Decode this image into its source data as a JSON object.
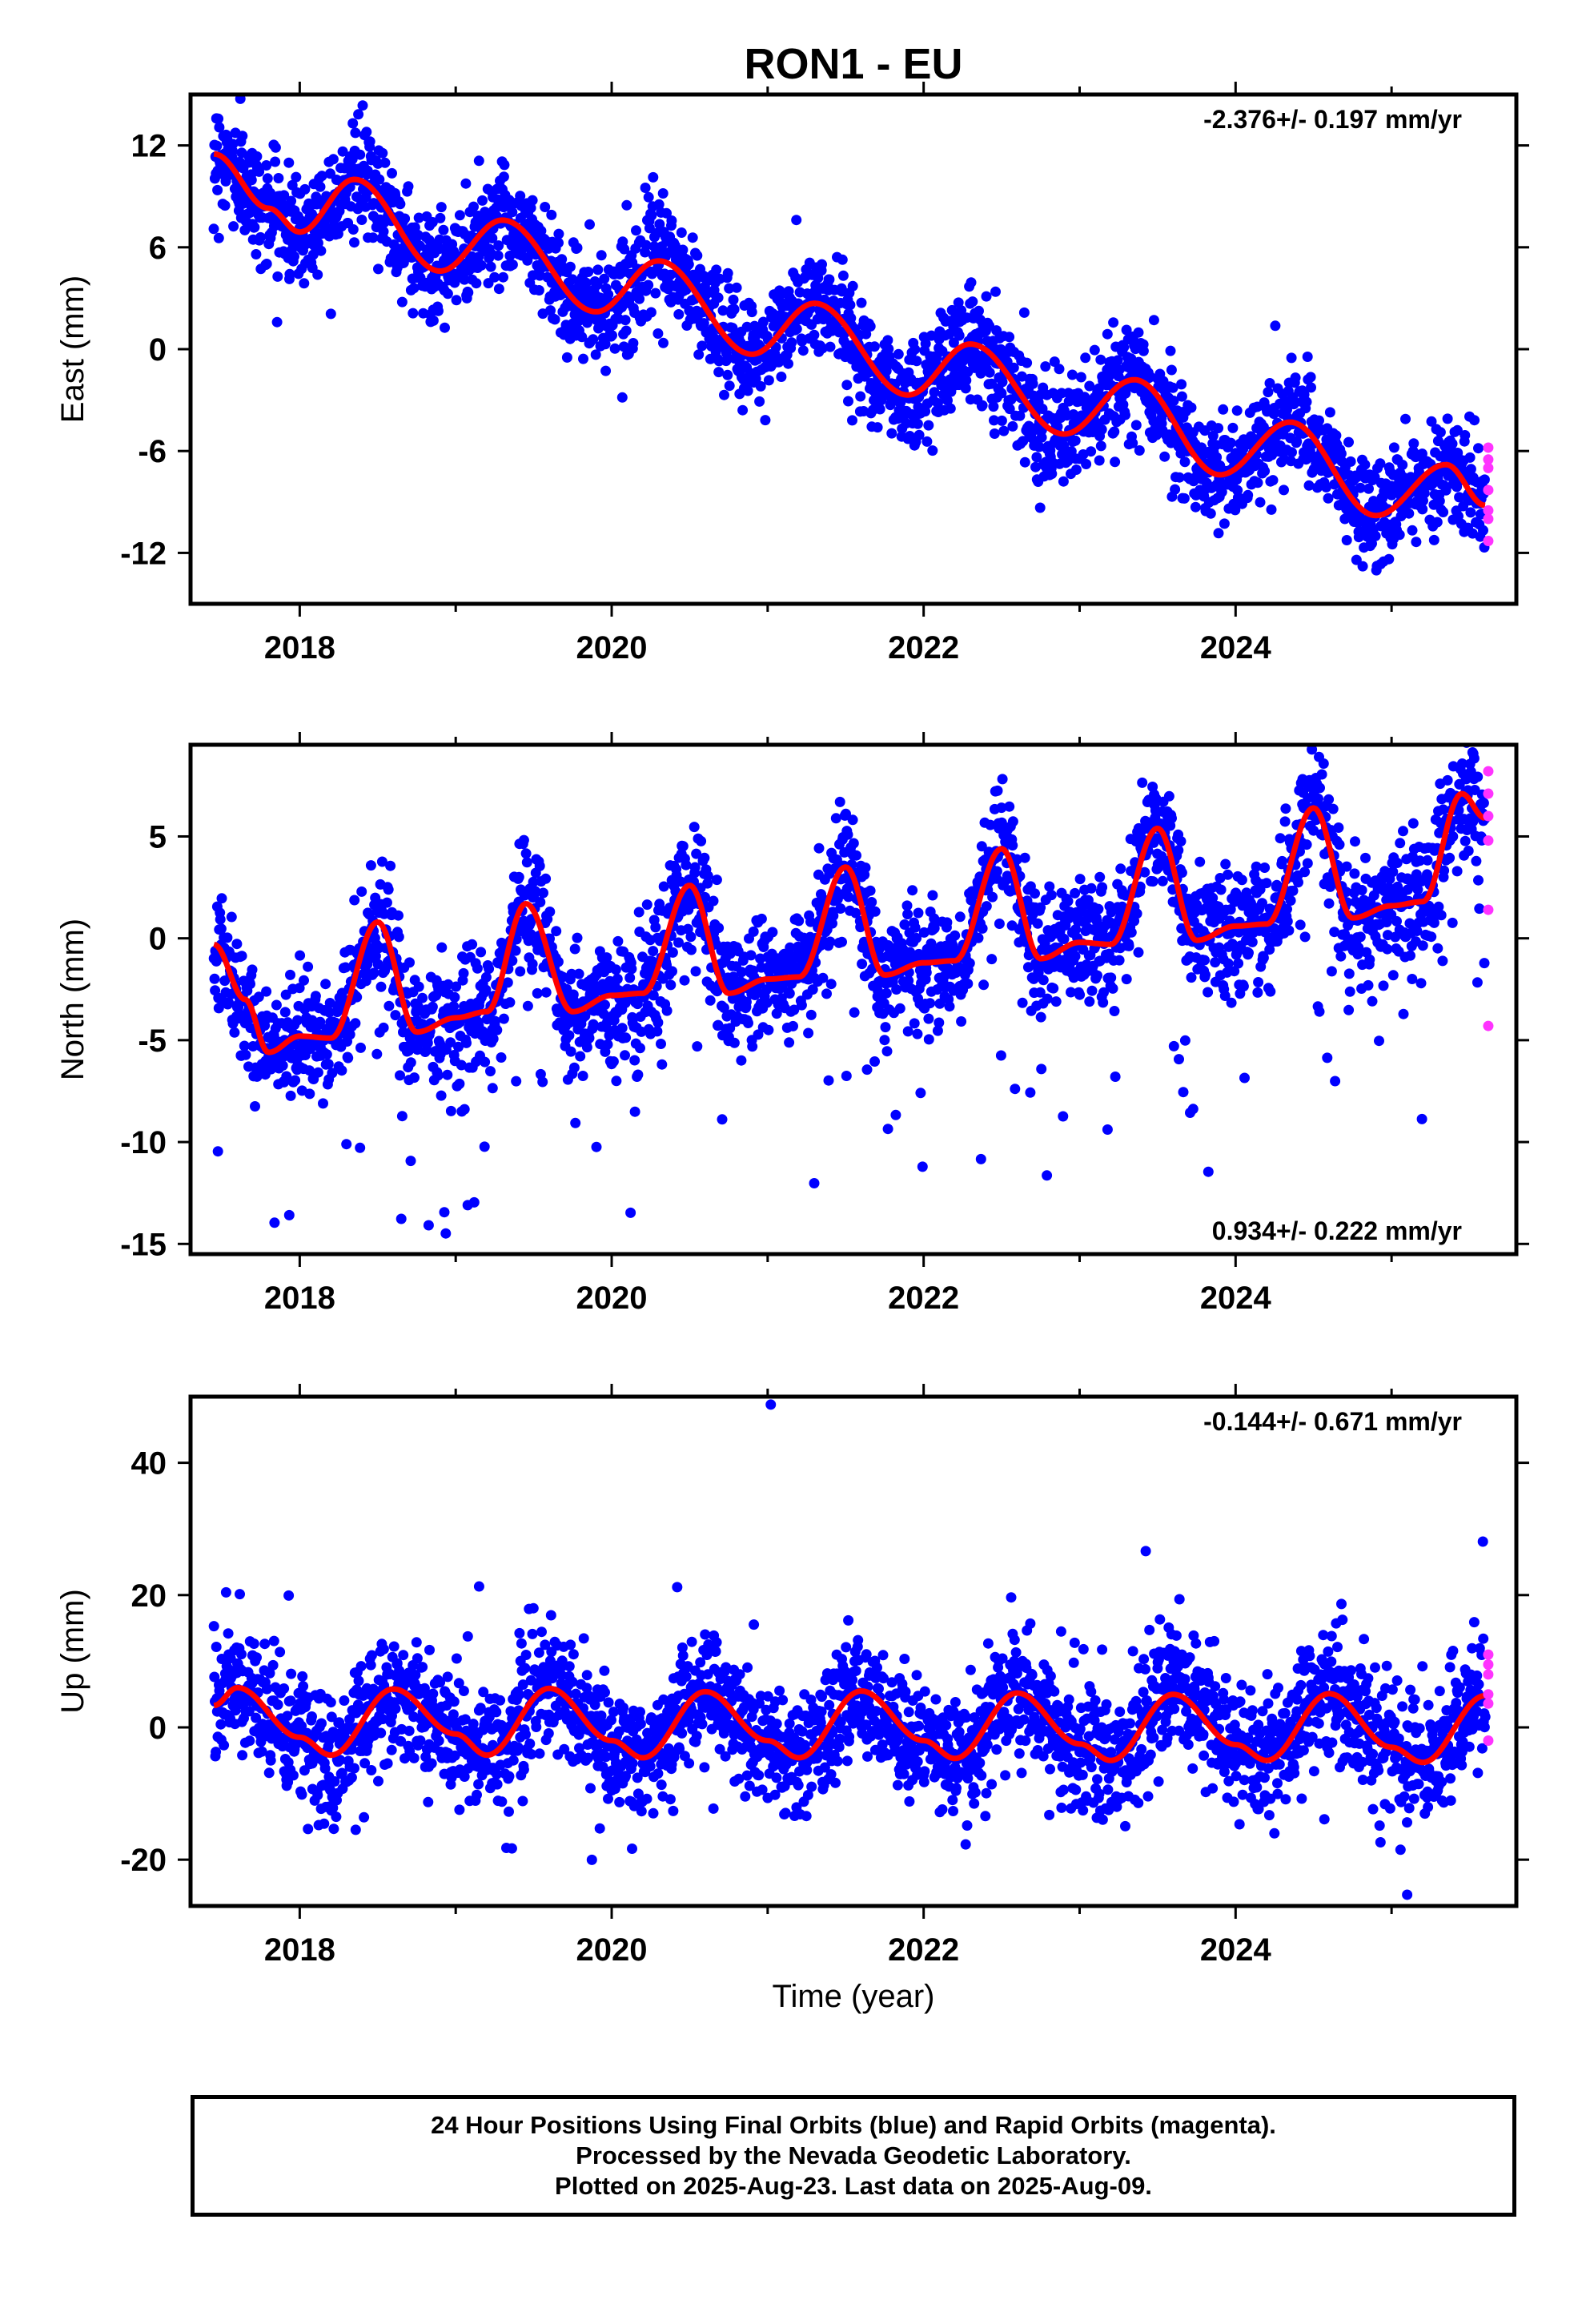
{
  "chart_data": {
    "type": "scatter",
    "title": "RON1 - EU",
    "xlabel": "Time (year)",
    "xlim": [
      2017.3,
      2025.8
    ],
    "x_ticks": [
      2018,
      2020,
      2022,
      2024
    ],
    "x_tick_labels": [
      "2018",
      "2020",
      "2022",
      "2024"
    ],
    "colors": {
      "final": "#0000ff",
      "rapid": "#ff33ff",
      "model": "#ff0000"
    },
    "panels": [
      {
        "id": "east",
        "ylabel": "East (mm)",
        "ylim": [
          -15,
          15
        ],
        "y_ticks": [
          12,
          6,
          0,
          -6,
          -12
        ],
        "y_tick_labels": [
          "12",
          "6",
          "0",
          "-6",
          "-12"
        ],
        "rate_text": "-2.376+/- 0.197 mm/yr",
        "rate_position": "top-right",
        "model": {
          "offset": 11.4,
          "rate": -2.376,
          "t0": 2017.45,
          "amp": 2.0,
          "phase": 2018.4,
          "amp2": 0,
          "phase2": 0,
          "rate_end_kink": 0
        },
        "samples": [
          [
            2017.45,
            11.5
          ],
          [
            2017.8,
            8.3
          ],
          [
            2018.0,
            6.9
          ],
          [
            2018.35,
            10.0
          ],
          [
            2018.9,
            4.6
          ],
          [
            2019.3,
            7.6
          ],
          [
            2019.9,
            2.2
          ],
          [
            2020.3,
            5.2
          ],
          [
            2020.9,
            -0.3
          ],
          [
            2021.3,
            2.7
          ],
          [
            2021.9,
            -2.7
          ],
          [
            2022.3,
            0.3
          ],
          [
            2022.9,
            -5.0
          ],
          [
            2023.35,
            -1.8
          ],
          [
            2023.9,
            -7.4
          ],
          [
            2024.35,
            -4.3
          ],
          [
            2024.9,
            -9.8
          ],
          [
            2025.35,
            -6.8
          ],
          [
            2025.6,
            -9.2
          ]
        ],
        "scatter_sd": 1.6,
        "rapid_points": [
          [
            2025.62,
            -5.8
          ],
          [
            2025.62,
            -6.5
          ],
          [
            2025.62,
            -7.0
          ],
          [
            2025.62,
            -8.3
          ],
          [
            2025.62,
            -9.5
          ],
          [
            2025.62,
            -10.0
          ],
          [
            2025.62,
            -11.3
          ]
        ]
      },
      {
        "id": "north",
        "ylabel": "North (mm)",
        "ylim": [
          -15.5,
          9.5
        ],
        "y_ticks": [
          5,
          0,
          -5,
          -10,
          -15
        ],
        "y_tick_labels": [
          "5",
          "0",
          "-5",
          "-10",
          "-15"
        ],
        "rate_text": "0.934+/- 0.222 mm/yr",
        "rate_position": "bottom-right",
        "samples": [
          [
            2017.45,
            -0.3
          ],
          [
            2017.65,
            -3.0
          ],
          [
            2017.8,
            -5.6
          ],
          [
            2018.0,
            -4.8
          ],
          [
            2018.2,
            -4.9
          ],
          [
            2018.5,
            0.8
          ],
          [
            2018.75,
            -4.6
          ],
          [
            2019.0,
            -3.9
          ],
          [
            2019.2,
            -3.6
          ],
          [
            2019.45,
            1.7
          ],
          [
            2019.75,
            -3.6
          ],
          [
            2020.0,
            -2.8
          ],
          [
            2020.2,
            -2.7
          ],
          [
            2020.5,
            2.6
          ],
          [
            2020.75,
            -2.7
          ],
          [
            2021.0,
            -2.0
          ],
          [
            2021.2,
            -1.9
          ],
          [
            2021.5,
            3.5
          ],
          [
            2021.75,
            -1.8
          ],
          [
            2022.0,
            -1.2
          ],
          [
            2022.2,
            -1.1
          ],
          [
            2022.5,
            4.4
          ],
          [
            2022.75,
            -1.0
          ],
          [
            2023.0,
            -0.2
          ],
          [
            2023.2,
            -0.3
          ],
          [
            2023.5,
            5.4
          ],
          [
            2023.75,
            -0.1
          ],
          [
            2024.0,
            0.6
          ],
          [
            2024.2,
            0.7
          ],
          [
            2024.5,
            6.4
          ],
          [
            2024.75,
            1.0
          ],
          [
            2025.0,
            1.6
          ],
          [
            2025.2,
            1.8
          ],
          [
            2025.45,
            7.1
          ],
          [
            2025.6,
            5.9
          ]
        ],
        "scatter_sd": 1.5,
        "rapid_points": [
          [
            2025.62,
            8.2
          ],
          [
            2025.62,
            7.1
          ],
          [
            2025.62,
            6.0
          ],
          [
            2025.62,
            4.8
          ],
          [
            2025.62,
            1.4
          ],
          [
            2025.62,
            -4.3
          ]
        ]
      },
      {
        "id": "up",
        "ylabel": "Up (mm)",
        "ylim": [
          -27,
          50
        ],
        "y_ticks": [
          40,
          20,
          0,
          -20
        ],
        "y_tick_labels": [
          "40",
          "20",
          "0",
          "-20"
        ],
        "rate_text": "-0.144+/- 0.671 mm/yr",
        "rate_position": "top-right",
        "samples": [
          [
            2017.45,
            3.3
          ],
          [
            2017.6,
            6.0
          ],
          [
            2018.0,
            -1.5
          ],
          [
            2018.2,
            -4.2
          ],
          [
            2018.6,
            5.8
          ],
          [
            2019.0,
            -1.0
          ],
          [
            2019.2,
            -4.2
          ],
          [
            2019.6,
            5.9
          ],
          [
            2020.0,
            -2.0
          ],
          [
            2020.2,
            -4.6
          ],
          [
            2020.6,
            5.4
          ],
          [
            2021.0,
            -2.0
          ],
          [
            2021.2,
            -4.6
          ],
          [
            2021.6,
            5.5
          ],
          [
            2022.0,
            -2.0
          ],
          [
            2022.2,
            -4.7
          ],
          [
            2022.6,
            5.2
          ],
          [
            2023.0,
            -2.5
          ],
          [
            2023.2,
            -5.0
          ],
          [
            2023.6,
            5.0
          ],
          [
            2024.0,
            -2.6
          ],
          [
            2024.2,
            -5.0
          ],
          [
            2024.6,
            5.1
          ],
          [
            2025.0,
            -3.0
          ],
          [
            2025.2,
            -5.3
          ],
          [
            2025.6,
            4.8
          ]
        ],
        "scatter_sd": 4.6,
        "rapid_points": [
          [
            2025.62,
            11.0
          ],
          [
            2025.62,
            9.5
          ],
          [
            2025.62,
            8.0
          ],
          [
            2025.62,
            5.0
          ],
          [
            2025.62,
            3.6
          ],
          [
            2025.62,
            -2.0
          ]
        ],
        "outliers": [
          [
            2021.02,
            48.8
          ],
          [
            2019.15,
            21.3
          ],
          [
            2020.42,
            21.2
          ],
          [
            2025.1,
            -25.3
          ]
        ]
      }
    ]
  },
  "footer": {
    "line1": "24 Hour Positions Using Final Orbits (blue) and Rapid Orbits (magenta).",
    "line2": "Processed by the Nevada Geodetic Laboratory.",
    "line3": "Plotted on 2025-Aug-23. Last data on 2025-Aug-09."
  }
}
